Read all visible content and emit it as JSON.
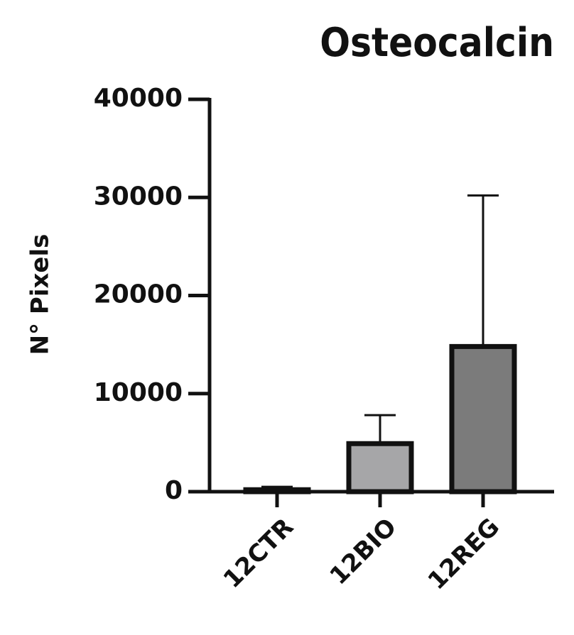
{
  "chart_data": {
    "type": "bar",
    "title": "Osteocalcin",
    "y_label": "N° Pixels",
    "categories": [
      "12CTR",
      "12BIO",
      "12REG"
    ],
    "values": [
      200,
      4900,
      14800
    ],
    "errors": [
      300,
      2900,
      15400
    ],
    "colors": [
      "#d9d9d9",
      "#a6a6a8",
      "#7b7b7b"
    ],
    "ylim": [
      0,
      40000
    ],
    "yticks": [
      0,
      10000,
      20000,
      30000,
      40000
    ]
  }
}
